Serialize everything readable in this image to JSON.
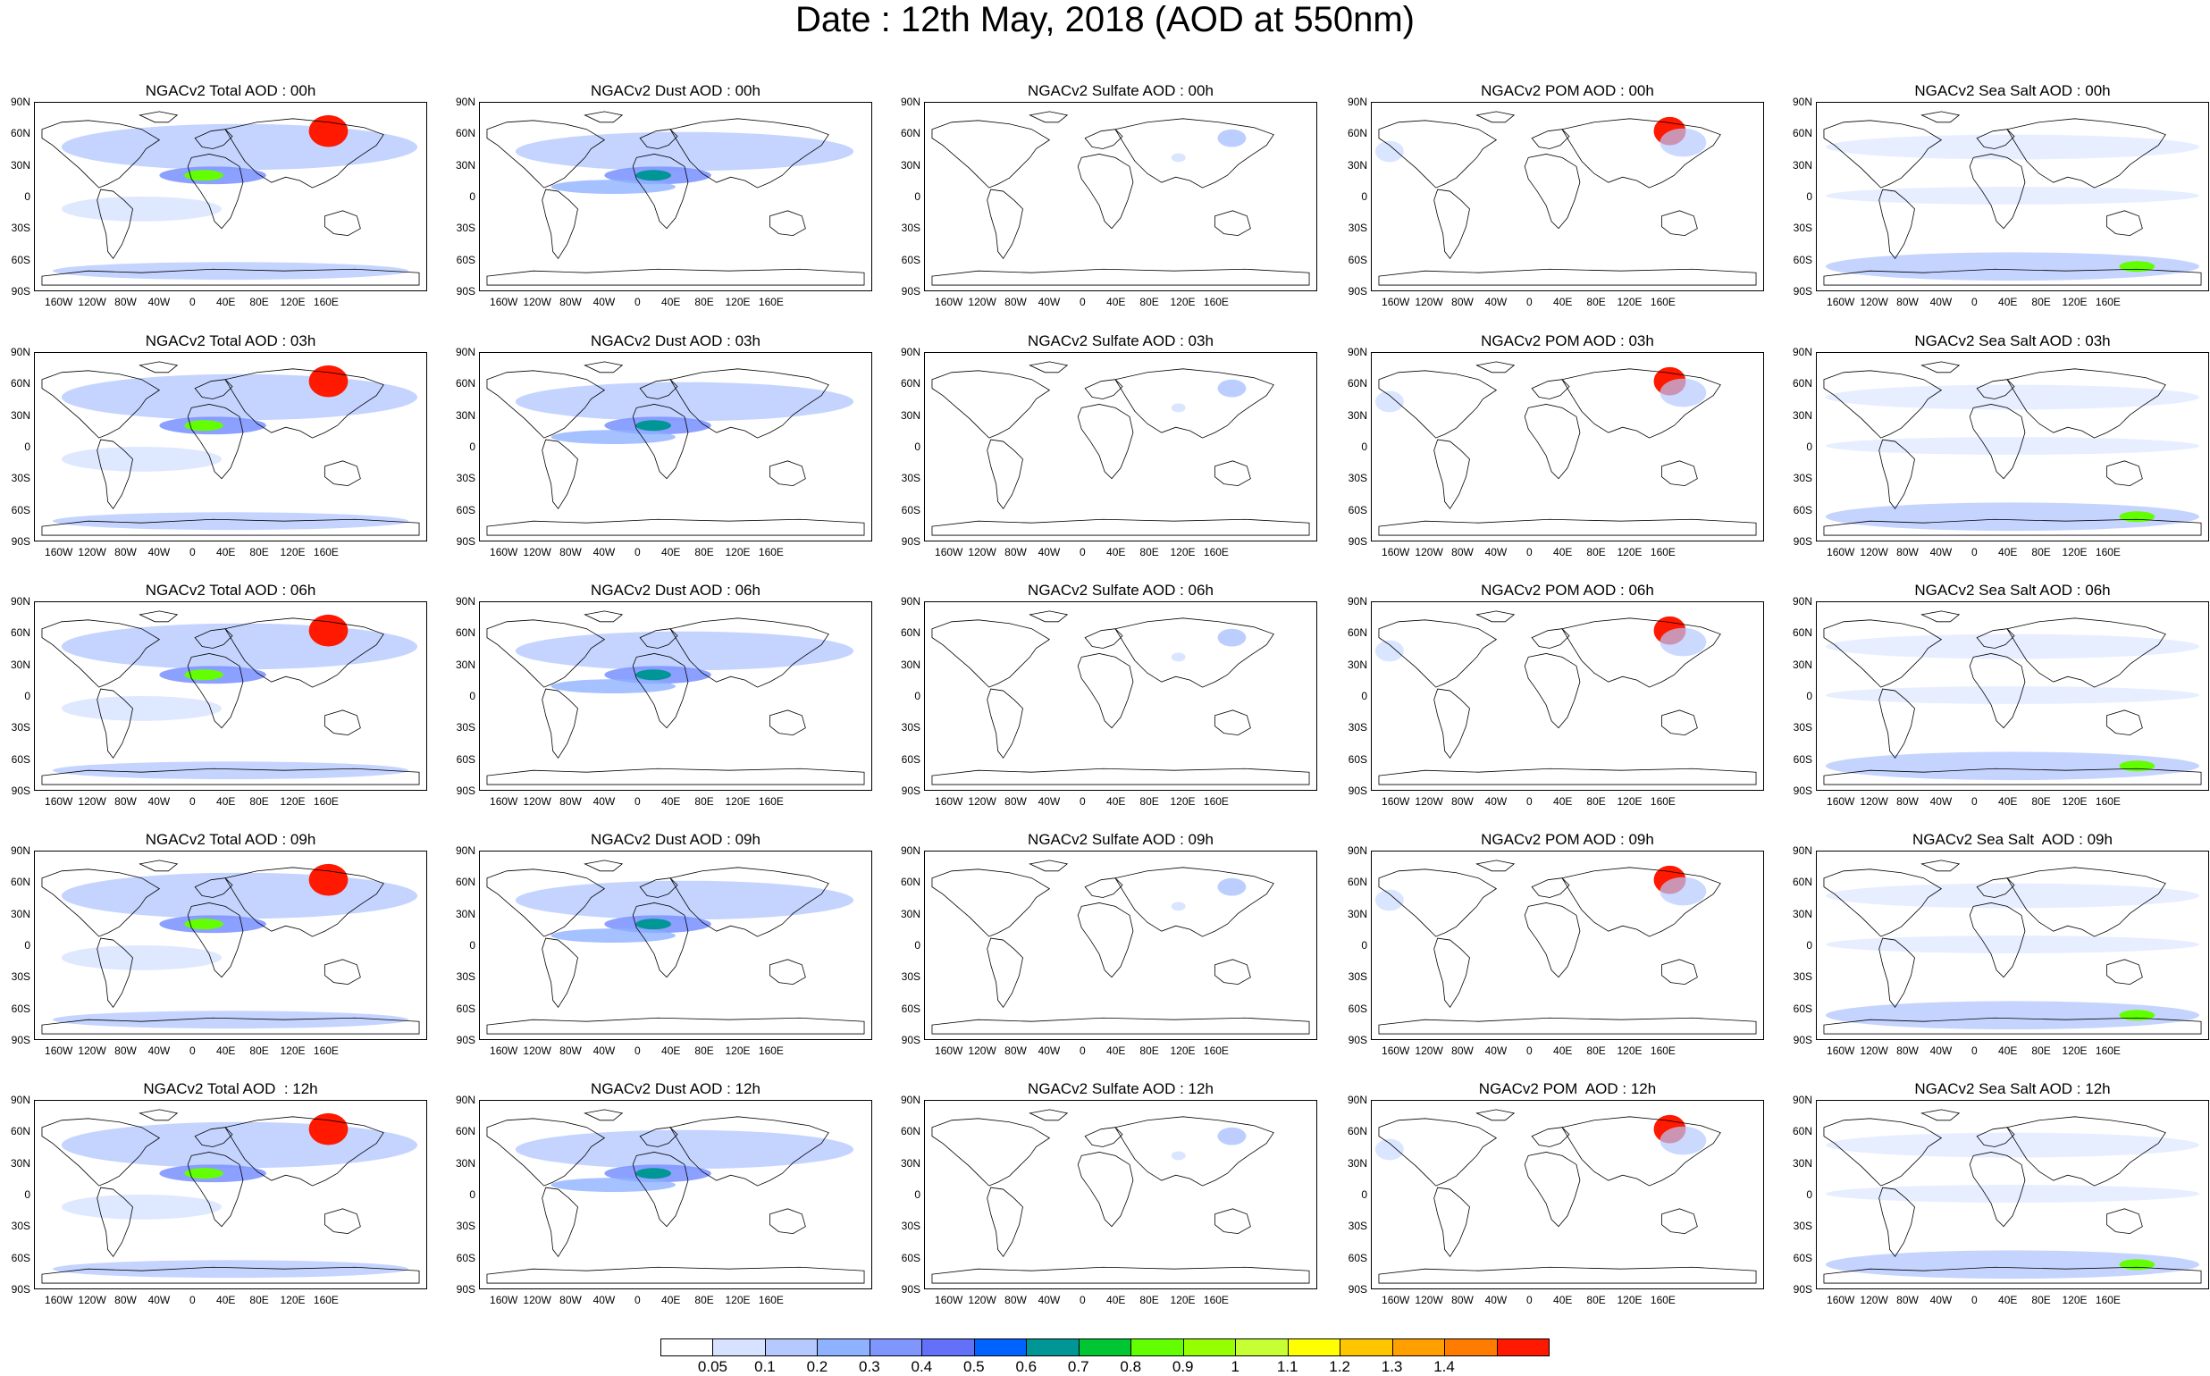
{
  "title": "Date : 12th May, 2018 (AOD at 550nm)",
  "lat_ticks": [
    "90N",
    "60N",
    "30N",
    "0",
    "30S",
    "60S",
    "90S"
  ],
  "lon_ticks": [
    "160W",
    "120W",
    "80W",
    "40W",
    "0",
    "40E",
    "80E",
    "120E",
    "160E"
  ],
  "rows": [
    [
      "NGACv2 Total AOD : 00h",
      "NGACv2 Dust AOD : 00h",
      "NGACv2 Sulfate AOD : 00h",
      "NGACv2 POM AOD : 00h",
      "NGACv2 Sea Salt AOD : 00h"
    ],
    [
      "NGACv2 Total AOD : 03h",
      "NGACv2 Dust AOD : 03h",
      "NGACv2 Sulfate AOD : 03h",
      "NGACv2 POM AOD : 03h",
      "NGACv2 Sea Salt AOD : 03h"
    ],
    [
      "NGACv2 Total AOD : 06h",
      "NGACv2 Dust AOD : 06h",
      "NGACv2 Sulfate AOD : 06h",
      "NGACv2 POM AOD : 06h",
      "NGACv2 Sea Salt AOD : 06h"
    ],
    [
      "NGACv2 Total AOD : 09h",
      "NGACv2 Dust AOD : 09h",
      "NGACv2 Sulfate AOD : 09h",
      "NGACv2 POM AOD : 09h",
      "NGACv2 Sea Salt  AOD : 09h"
    ],
    [
      "NGACv2 Total AOD  : 12h",
      "NGACv2 Dust AOD : 12h",
      "NGACv2 Sulfate AOD : 12h",
      "NGACv2 POM  AOD : 12h",
      "NGACv2 Sea Salt AOD : 12h"
    ]
  ],
  "colorbar": {
    "labels": [
      "0.05",
      "0.1",
      "0.2",
      "0.3",
      "0.4",
      "0.5",
      "0.6",
      "0.7",
      "0.8",
      "0.9",
      "1",
      "1.1",
      "1.2",
      "1.3",
      "1.4"
    ],
    "colors": [
      "#ffffff",
      "#d6e2ff",
      "#b5c9ff",
      "#8eb2ff",
      "#7f96ff",
      "#6370f8",
      "#0063ff",
      "#009696",
      "#00c633",
      "#63ff00",
      "#96ff00",
      "#c6ff33",
      "#ffff00",
      "#ffc600",
      "#ffa000",
      "#ff7c00",
      "#ff1900"
    ]
  },
  "colors": {
    "land_outline": "#000000",
    "background": "#ffffff"
  }
}
